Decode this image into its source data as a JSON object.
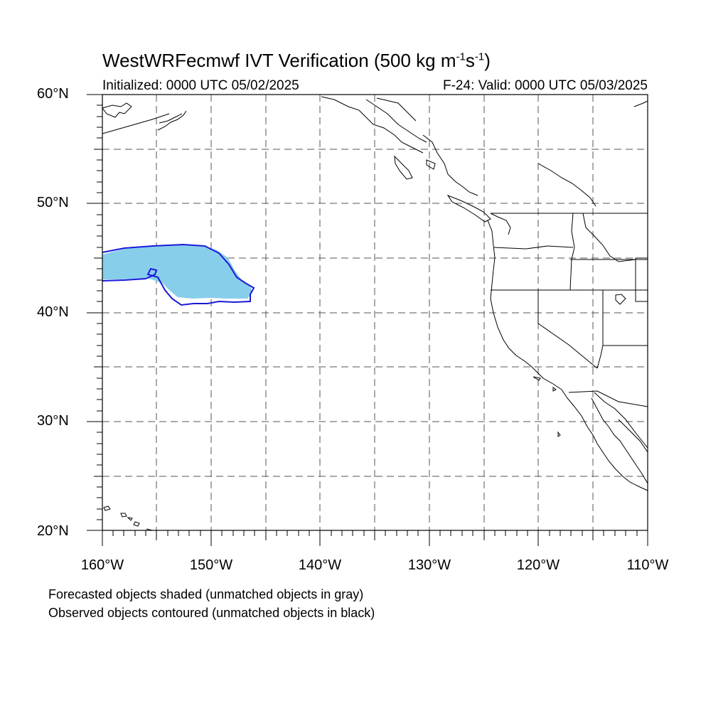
{
  "title": {
    "main": "WestWRFecmwf IVT Verification (500 kg m",
    "exp1": "-1",
    "mid": "s",
    "exp2": "-1",
    "end": ")"
  },
  "subtitle": {
    "initialized": "Initialized: 0000 UTC 05/02/2025",
    "valid": "F-24: Valid: 0000 UTC 05/03/2025"
  },
  "axes": {
    "lat_labels": [
      "60°N",
      "50°N",
      "40°N",
      "30°N",
      "20°N"
    ],
    "lon_labels": [
      "160°W",
      "150°W",
      "140°W",
      "130°W",
      "120°W",
      "110°W"
    ],
    "lat_range": [
      20,
      60
    ],
    "lon_range": [
      -160,
      -110
    ],
    "grid": "dashed, every 5 degrees"
  },
  "colors": {
    "forecast_fill": "#87ceeb",
    "observed_contour": "#1a1adb",
    "coastline": "#000000",
    "grid": "#555555"
  },
  "objects": {
    "forecast_object": "matched forecast IVT object, shaded light blue",
    "observed_object": "matched observed IVT object, blue contour"
  },
  "footnotes": {
    "line1": "Forecasted objects shaded (unmatched objects in gray)",
    "line2": "Observed objects contoured (unmatched objects in black)"
  }
}
